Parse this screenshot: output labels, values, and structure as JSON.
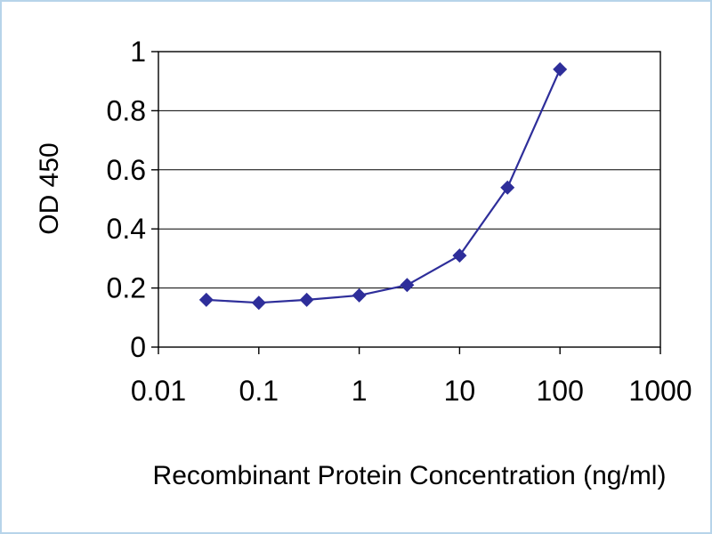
{
  "chart_data": {
    "type": "line",
    "title": "",
    "xlabel": "Recombinant Protein Concentration (ng/ml)",
    "ylabel": "OD 450",
    "x_scale": "log",
    "xlim": [
      0.01,
      1000
    ],
    "ylim": [
      0,
      1
    ],
    "x_ticks": [
      0.01,
      0.1,
      1,
      10,
      100,
      1000
    ],
    "x_tick_labels": [
      "0.01",
      "0.1",
      "1",
      "10",
      "100",
      "1000"
    ],
    "y_ticks": [
      0,
      0.2,
      0.4,
      0.6,
      0.8,
      1
    ],
    "y_tick_labels": [
      "0",
      "0.2",
      "0.4",
      "0.6",
      "0.8",
      "1"
    ],
    "grid": "horizontal",
    "legend": "none",
    "axis_color": "#000000",
    "grid_color": "#000000",
    "series": [
      {
        "marker": "diamond",
        "color": "#2e2e9a",
        "points": [
          {
            "x": 0.03,
            "y": 0.16
          },
          {
            "x": 0.1,
            "y": 0.15
          },
          {
            "x": 0.3,
            "y": 0.16
          },
          {
            "x": 1,
            "y": 0.175
          },
          {
            "x": 3,
            "y": 0.21
          },
          {
            "x": 10,
            "y": 0.31
          },
          {
            "x": 30,
            "y": 0.54
          },
          {
            "x": 100,
            "y": 0.94
          }
        ]
      }
    ]
  },
  "frame": {
    "border_color": "#b7d4ea",
    "background": "#ffffff"
  }
}
